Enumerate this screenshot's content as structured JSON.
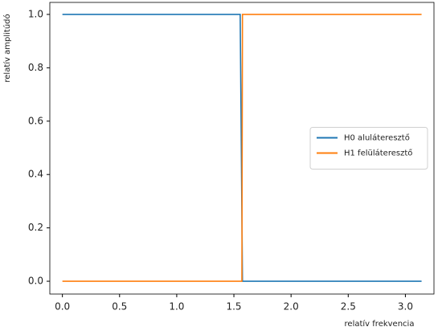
{
  "chart_data": {
    "type": "line",
    "xlabel": "relatív frekvencia",
    "ylabel": "relatív amplitúdó",
    "series": [
      {
        "name": "H0 aluláteresztő",
        "color": "#1f77b4",
        "x": [
          0,
          1.555,
          1.575,
          3.1416
        ],
        "values": [
          1,
          1,
          0,
          0
        ]
      },
      {
        "name": "H1 felüláteresztő",
        "color": "#ff7f0e",
        "x": [
          0,
          1.57,
          1.575,
          3.1416
        ],
        "values": [
          0,
          0,
          1,
          1
        ]
      }
    ],
    "xlim": [
      -0.11,
      3.25
    ],
    "ylim": [
      -0.048,
      1.045
    ],
    "xticks": [
      {
        "value": 0,
        "label": "0.0"
      },
      {
        "value": 0.5,
        "label": "0.5"
      },
      {
        "value": 1,
        "label": "1.0"
      },
      {
        "value": 1.5,
        "label": "1.5"
      },
      {
        "value": 2,
        "label": "2.0"
      },
      {
        "value": 2.5,
        "label": "2.5"
      },
      {
        "value": 3,
        "label": "3.0"
      }
    ],
    "yticks": [
      {
        "value": 0,
        "label": "0.0"
      },
      {
        "value": 0.2,
        "label": "0.2"
      },
      {
        "value": 0.4,
        "label": "0.4"
      },
      {
        "value": 0.6,
        "label": "0.6"
      },
      {
        "value": 0.8,
        "label": "0.8"
      },
      {
        "value": 1,
        "label": "1.0"
      }
    ],
    "legend": "center right",
    "grid": false
  }
}
